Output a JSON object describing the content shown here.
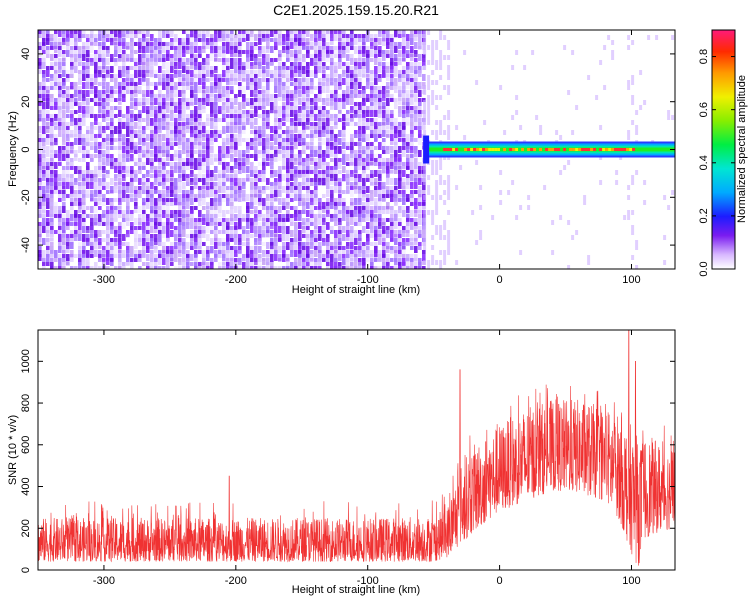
{
  "title": "C2E1.2025.159.15.20.R21",
  "colors": {
    "snr_line": "#f03232",
    "spectrogram_noise": "#7a1cf0",
    "spectrogram_signal": "#00c8ff"
  },
  "chart_data": [
    {
      "type": "heatmap",
      "xlabel": "Height of straight line (km)",
      "ylabel": "Frequency (Hz)",
      "xlim": [
        -350,
        133
      ],
      "ylim": [
        -50,
        50
      ],
      "x_ticks": [
        -300,
        -200,
        -100,
        0,
        100
      ],
      "x_tick_labels": [
        "-300",
        "-200",
        "-100",
        "0",
        "100"
      ],
      "y_ticks": [
        -40,
        -20,
        0,
        20,
        40
      ],
      "y_tick_labels": [
        "-40",
        "-20",
        "0",
        "20",
        "40"
      ],
      "colorbar": {
        "label": "Normalized spectral amplitude",
        "range": [
          0,
          0.9
        ],
        "ticks": [
          0,
          0.2,
          0.4,
          0.6,
          0.8
        ],
        "tick_labels": [
          "0.0",
          "0.2",
          "0.4",
          "0.6",
          "0.8"
        ],
        "colormap": "rainbow"
      },
      "regions": [
        {
          "x_range": [
            -350,
            -58
          ],
          "description": "broadband noise, amplitude ~0.05-0.2 across all frequencies"
        },
        {
          "x_range": [
            -58,
            133
          ],
          "signal_freq_hz": 0,
          "peak_amplitude": 0.85,
          "description": "narrow signal near 0 Hz"
        }
      ]
    },
    {
      "type": "line",
      "xlabel": "Height of straight line (km)",
      "ylabel": "SNR (10 * v/v)",
      "xlim": [
        -350,
        133
      ],
      "ylim": [
        0,
        1150
      ],
      "x_ticks": [
        -300,
        -200,
        -100,
        0,
        100
      ],
      "x_tick_labels": [
        "-300",
        "-200",
        "-100",
        "0",
        "100"
      ],
      "y_ticks": [
        0,
        200,
        400,
        600,
        800,
        1000
      ],
      "y_tick_labels": [
        "0",
        "200",
        "400",
        "600",
        "800",
        "1000"
      ],
      "envelope": {
        "x": [
          -350,
          -300,
          -200,
          -100,
          -50,
          -40,
          -30,
          -20,
          -10,
          0,
          20,
          40,
          60,
          80,
          90,
          100,
          105,
          110,
          120,
          133
        ],
        "lower": [
          40,
          40,
          40,
          40,
          40,
          60,
          120,
          180,
          230,
          280,
          330,
          380,
          370,
          330,
          250,
          80,
          10,
          150,
          180,
          200
        ],
        "upper": [
          250,
          250,
          250,
          250,
          260,
          300,
          500,
          600,
          650,
          700,
          780,
          820,
          820,
          780,
          750,
          700,
          600,
          650,
          620,
          600
        ]
      },
      "spikes": [
        {
          "x": -30,
          "y": 960
        },
        {
          "x": 98,
          "y": 1150
        },
        {
          "x": 103,
          "y": 1000
        },
        {
          "x": -205,
          "y": 450
        }
      ]
    }
  ]
}
